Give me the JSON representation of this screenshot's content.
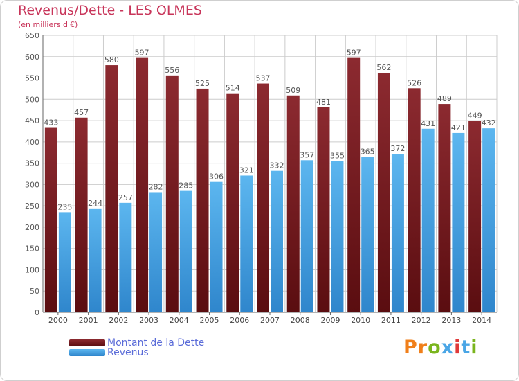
{
  "title": "Revenus/Dette - LES OLMES",
  "subtitle": "(en milliers d'€)",
  "logo": {
    "text": "Proxiti",
    "letters": [
      "P",
      "r",
      "o",
      "x",
      "i",
      "t",
      "i"
    ]
  },
  "colors": {
    "debt": "#7a1f23",
    "revenue": "#4aa6e6",
    "grid": "#cccccc",
    "title": "#c8355a",
    "legend_text": "#5a6bd8",
    "logo": [
      "#f07f1a",
      "#f07f1a",
      "#7ab51d",
      "#4aa6e6",
      "#e03a3a",
      "#4aa6e6",
      "#7ab51d"
    ]
  },
  "legend": [
    {
      "label": "Montant de la Dette",
      "color": "#7a1f23"
    },
    {
      "label": "Revenus",
      "color": "#4aa6e6"
    }
  ],
  "chart_data": {
    "type": "bar",
    "title": "Revenus/Dette - LES OLMES",
    "subtitle": "(en milliers d'€)",
    "categories": [
      "2000",
      "2001",
      "2002",
      "2003",
      "2004",
      "2005",
      "2006",
      "2007",
      "2008",
      "2009",
      "2010",
      "2011",
      "2012",
      "2013",
      "2014"
    ],
    "series": [
      {
        "name": "Montant de la Dette",
        "values": [
          433,
          457,
          580,
          597,
          556,
          525,
          514,
          537,
          509,
          481,
          597,
          562,
          526,
          489,
          449
        ]
      },
      {
        "name": "Revenus",
        "values": [
          235,
          244,
          257,
          282,
          285,
          306,
          321,
          332,
          357,
          355,
          365,
          372,
          431,
          421,
          432
        ]
      }
    ],
    "ylim": [
      0,
      650
    ],
    "yticks": [
      0,
      50,
      100,
      150,
      200,
      250,
      300,
      350,
      400,
      450,
      500,
      550,
      600,
      650
    ],
    "grid": true,
    "legend_position": "bottom-left"
  }
}
